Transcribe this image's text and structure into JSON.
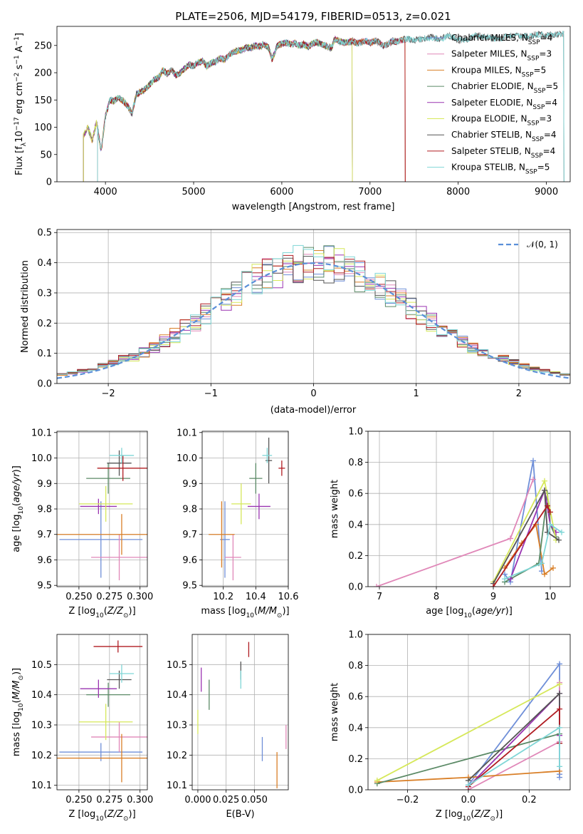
{
  "title": "PLATE=2506, MJD=54179, FIBERID=0513, z=0.021",
  "colors": {
    "Chabrier MILES": "#6f8fd8",
    "Salpeter MILES": "#e087b8",
    "Kroupa MILES": "#d97f27",
    "Chabrier ELODIE": "#5b8a66",
    "Salpeter ELODIE": "#9a34b1",
    "Kroupa ELODIE": "#d6e85a",
    "Chabrier STELIB": "#555555",
    "Salpeter STELIB": "#b01c22",
    "Kroupa STELIB": "#7fd6d6"
  },
  "chart_data": [
    {
      "type": "line",
      "name": "spectrum",
      "ylabel": "Flux [f_λ 10^-17 erg cm^-2 s^-1 A^-1]",
      "xlabel": "wavelength [Angstrom, rest frame]",
      "xlim": [
        3450,
        9270
      ],
      "ylim": [
        0,
        285
      ],
      "xticks": [
        4000,
        5000,
        6000,
        7000,
        8000,
        9000
      ],
      "yticks": [
        0,
        50,
        100,
        150,
        200,
        250
      ],
      "legend": [
        {
          "label": "Chabrier MILES, N_SSP=4",
          "text": "Chabrier MILES, N",
          "sub": "SSP",
          "n": "=4"
        },
        {
          "label": "Salpeter MILES, N_SSP=3",
          "text": "Salpeter MILES, N",
          "sub": "SSP",
          "n": "=3"
        },
        {
          "label": "Kroupa MILES, N_SSP=5",
          "text": "Kroupa MILES, N",
          "sub": "SSP",
          "n": "=5"
        },
        {
          "label": "Chabrier ELODIE, N_SSP=5",
          "text": "Chabrier ELODIE, N",
          "sub": "SSP",
          "n": "=5"
        },
        {
          "label": "Salpeter ELODIE, N_SSP=4",
          "text": "Salpeter ELODIE, N",
          "sub": "SSP",
          "n": "=4"
        },
        {
          "label": "Kroupa ELODIE, N_SSP=3",
          "text": "Kroupa ELODIE, N",
          "sub": "SSP",
          "n": "=3"
        },
        {
          "label": "Chabrier STELIB, N_SSP=4",
          "text": "Chabrier STELIB, N",
          "sub": "SSP",
          "n": "=4"
        },
        {
          "label": "Salpeter STELIB, N_SSP=4",
          "text": "Salpeter STELIB, N",
          "sub": "SSP",
          "n": "=4"
        },
        {
          "label": "Kroupa STELIB, N_SSP=5",
          "text": "Kroupa STELIB, N",
          "sub": "SSP",
          "n": "=5"
        }
      ],
      "observed_x": [
        3750,
        3800,
        3850,
        3900,
        3950,
        4000,
        4050,
        4100,
        4150,
        4200,
        4250,
        4300,
        4350,
        4400,
        4450,
        4500,
        4550,
        4600,
        4650,
        4700,
        4750,
        4800,
        4850,
        4900,
        4950,
        5000,
        5050,
        5100,
        5150,
        5200,
        5250,
        5300,
        5350,
        5400,
        5450,
        5500,
        5550,
        5600,
        5650,
        5700,
        5750,
        5800,
        5850,
        5890,
        5950,
        6000,
        6050,
        6100,
        6150,
        6200,
        6250,
        6300,
        6350,
        6400,
        6450,
        6500,
        6563,
        6600,
        6650,
        6700,
        6750,
        6800,
        6850,
        6900,
        6950,
        7000,
        7050,
        7100,
        7150,
        7200,
        7250,
        7300,
        7350,
        7400,
        7500,
        7600,
        7700,
        7800,
        7900,
        8000,
        8100,
        8200,
        8300,
        8400,
        8500,
        8600,
        8700,
        8800,
        8900,
        9000,
        9100,
        9200
      ],
      "observed_y": [
        85,
        100,
        75,
        110,
        55,
        120,
        150,
        148,
        155,
        148,
        140,
        125,
        160,
        165,
        170,
        178,
        188,
        190,
        205,
        198,
        205,
        195,
        200,
        208,
        215,
        212,
        218,
        222,
        212,
        218,
        220,
        226,
        224,
        232,
        238,
        240,
        242,
        246,
        245,
        250,
        248,
        252,
        246,
        225,
        250,
        253,
        255,
        252,
        254,
        250,
        252,
        248,
        254,
        256,
        252,
        250,
        245,
        262,
        258,
        255,
        256,
        258,
        254,
        256,
        258,
        255,
        258,
        256,
        250,
        252,
        258,
        257,
        259,
        262,
        260,
        262,
        265,
        262,
        268,
        260,
        262,
        268,
        265,
        263,
        264,
        268,
        266,
        267,
        270,
        268,
        270,
        272
      ],
      "model_ranges": {
        "Chabrier MILES": [
          3750,
          7400
        ],
        "Salpeter MILES": [
          3750,
          7400
        ],
        "Kroupa MILES": [
          3750,
          7400
        ],
        "Chabrier ELODIE": [
          3750,
          6800
        ],
        "Salpeter ELODIE": [
          3750,
          6800
        ],
        "Kroupa ELODIE": [
          3750,
          6800
        ],
        "Chabrier STELIB": [
          3910,
          9200
        ],
        "Salpeter STELIB": [
          3910,
          7400
        ],
        "Kroupa STELIB": [
          3910,
          9200
        ]
      }
    },
    {
      "type": "step",
      "name": "residual-distribution",
      "xlabel": "(data-model)/error",
      "ylabel": "Normed distribution",
      "xlim": [
        -2.5,
        2.5
      ],
      "ylim": [
        0,
        0.51
      ],
      "xticks": [
        -2,
        -1,
        0,
        1,
        2
      ],
      "yticks": [
        0.0,
        0.1,
        0.2,
        0.3,
        0.4,
        0.5
      ],
      "reference_curve": {
        "label": "N(0,1)"
      }
    },
    {
      "type": "errorbar",
      "name": "age-vs-Z",
      "xlabel": "Z [log10(Z/Z⊙)]",
      "ylabel": "age [log10(age/yr)]",
      "xlim": [
        0.232,
        0.306
      ],
      "ylim": [
        9.495,
        10.105
      ],
      "xticks": [
        0.25,
        0.275,
        0.3
      ],
      "yticks": [
        9.5,
        9.6,
        9.7,
        9.8,
        9.9,
        10.0,
        10.1
      ],
      "points": [
        {
          "model": "Chabrier MILES",
          "x": 0.268,
          "xerr": 0.034,
          "y": 9.68,
          "yerr": 0.15
        },
        {
          "model": "Salpeter MILES",
          "x": 0.283,
          "xerr": 0.023,
          "y": 9.61,
          "yerr": 0.09
        },
        {
          "model": "Kroupa MILES",
          "x": 0.285,
          "xerr": 0.055,
          "y": 9.7,
          "yerr": 0.08
        },
        {
          "model": "Chabrier ELODIE",
          "x": 0.274,
          "xerr": 0.018,
          "y": 9.92,
          "yerr": 0.06
        },
        {
          "model": "Salpeter ELODIE",
          "x": 0.266,
          "xerr": 0.015,
          "y": 9.81,
          "yerr": 0.03
        },
        {
          "model": "Kroupa ELODIE",
          "x": 0.272,
          "xerr": 0.022,
          "y": 9.82,
          "yerr": 0.07
        },
        {
          "model": "Chabrier STELIB",
          "x": 0.283,
          "xerr": 0.01,
          "y": 9.98,
          "yerr": 0.05
        },
        {
          "model": "Salpeter STELIB",
          "x": 0.286,
          "xerr": 0.021,
          "y": 9.96,
          "yerr": 0.05
        },
        {
          "model": "Kroupa STELIB",
          "x": 0.285,
          "xerr": 0.01,
          "y": 10.01,
          "yerr": 0.03
        }
      ]
    },
    {
      "type": "errorbar",
      "name": "age-vs-mass",
      "xlabel": "mass [log10(M/M⊙)]",
      "ylabel": "",
      "xlim": [
        10.07,
        10.6
      ],
      "ylim": [
        9.495,
        10.105
      ],
      "xticks": [
        10.2,
        10.4,
        10.6
      ],
      "yticks": [
        9.5,
        9.6,
        9.7,
        9.8,
        9.9,
        10.0,
        10.1
      ],
      "points": [
        {
          "model": "Chabrier MILES",
          "x": 10.21,
          "xerr": 0.03,
          "y": 9.68,
          "yerr": 0.15
        },
        {
          "model": "Salpeter MILES",
          "x": 10.26,
          "xerr": 0.05,
          "y": 9.61,
          "yerr": 0.09
        },
        {
          "model": "Kroupa MILES",
          "x": 10.19,
          "xerr": 0.08,
          "y": 9.7,
          "yerr": 0.13
        },
        {
          "model": "Chabrier ELODIE",
          "x": 10.4,
          "xerr": 0.04,
          "y": 9.92,
          "yerr": 0.06
        },
        {
          "model": "Salpeter ELODIE",
          "x": 10.42,
          "xerr": 0.07,
          "y": 9.81,
          "yerr": 0.05
        },
        {
          "model": "Kroupa ELODIE",
          "x": 10.31,
          "xerr": 0.06,
          "y": 9.82,
          "yerr": 0.08
        },
        {
          "model": "Chabrier STELIB",
          "x": 10.48,
          "xerr": 0.02,
          "y": 9.99,
          "yerr": 0.09
        },
        {
          "model": "Salpeter STELIB",
          "x": 10.56,
          "xerr": 0.02,
          "y": 9.96,
          "yerr": 0.03
        },
        {
          "model": "Kroupa STELIB",
          "x": 10.47,
          "xerr": 0.03,
          "y": 10.01,
          "yerr": 0.03
        }
      ]
    },
    {
      "type": "line",
      "name": "mass-weight-vs-age",
      "xlabel": "age [log10(age/yr)]",
      "ylabel": "mass weight",
      "xlim": [
        6.8,
        10.35
      ],
      "ylim": [
        0,
        1.0
      ],
      "xticks": [
        7,
        8,
        9,
        10
      ],
      "yticks": [
        0.0,
        0.2,
        0.4,
        0.6,
        0.8,
        1.0
      ],
      "series": [
        {
          "model": "Chabrier MILES",
          "x": [
            9.2,
            9.3,
            9.7,
            9.85
          ],
          "y": [
            0.08,
            0.03,
            0.81,
            0.1
          ]
        },
        {
          "model": "Salpeter MILES",
          "x": [
            6.95,
            9.3,
            9.7
          ],
          "y": [
            0.0,
            0.31,
            0.69
          ]
        },
        {
          "model": "Kroupa MILES",
          "x": [
            9.2,
            9.5,
            9.75,
            9.9,
            10.05
          ],
          "y": [
            0.12,
            0.28,
            0.4,
            0.08,
            0.12
          ]
        },
        {
          "model": "Chabrier ELODIE",
          "x": [
            9.2,
            9.8,
            9.95,
            10.0,
            10.1
          ],
          "y": [
            0.03,
            0.15,
            0.6,
            0.4,
            0.32
          ]
        },
        {
          "model": "Salpeter ELODIE",
          "x": [
            9.3,
            9.9,
            10.0,
            10.1
          ],
          "y": [
            0.05,
            0.62,
            0.4,
            0.35
          ]
        },
        {
          "model": "Kroupa ELODIE",
          "x": [
            9.0,
            9.9,
            10.1
          ],
          "y": [
            0.03,
            0.68,
            0.3
          ]
        },
        {
          "model": "Chabrier STELIB",
          "x": [
            9.0,
            9.9,
            9.95,
            10.15
          ],
          "y": [
            0.02,
            0.62,
            0.35,
            0.3
          ]
        },
        {
          "model": "Salpeter STELIB",
          "x": [
            9.0,
            9.95,
            10.0
          ],
          "y": [
            0.0,
            0.52,
            0.48
          ]
        },
        {
          "model": "Kroupa STELIB",
          "x": [
            9.2,
            9.85,
            10.0,
            10.2
          ],
          "y": [
            0.05,
            0.15,
            0.4,
            0.35
          ]
        }
      ]
    },
    {
      "type": "errorbar",
      "name": "mass-vs-Z",
      "xlabel": "Z [log10(Z/Z⊙)]",
      "ylabel": "mass [log10(M/M⊙)]",
      "xlim": [
        0.232,
        0.306
      ],
      "ylim": [
        10.085,
        10.6
      ],
      "xticks": [
        0.25,
        0.275,
        0.3
      ],
      "yticks": [
        10.1,
        10.2,
        10.3,
        10.4,
        10.5
      ],
      "points": [
        {
          "model": "Chabrier MILES",
          "x": 0.268,
          "xerr": 0.034,
          "y": 10.21,
          "yerr": 0.03
        },
        {
          "model": "Salpeter MILES",
          "x": 0.283,
          "xerr": 0.023,
          "y": 10.26,
          "yerr": 0.05
        },
        {
          "model": "Kroupa MILES",
          "x": 0.285,
          "xerr": 0.055,
          "y": 10.19,
          "yerr": 0.08
        },
        {
          "model": "Chabrier ELODIE",
          "x": 0.274,
          "xerr": 0.018,
          "y": 10.4,
          "yerr": 0.04
        },
        {
          "model": "Salpeter ELODIE",
          "x": 0.266,
          "xerr": 0.015,
          "y": 10.42,
          "yerr": 0.03
        },
        {
          "model": "Kroupa ELODIE",
          "x": 0.272,
          "xerr": 0.022,
          "y": 10.31,
          "yerr": 0.06
        },
        {
          "model": "Chabrier STELIB",
          "x": 0.283,
          "xerr": 0.01,
          "y": 10.45,
          "yerr": 0.03
        },
        {
          "model": "Salpeter STELIB",
          "x": 0.282,
          "xerr": 0.02,
          "y": 10.56,
          "yerr": 0.02
        },
        {
          "model": "Kroupa STELIB",
          "x": 0.285,
          "xerr": 0.01,
          "y": 10.47,
          "yerr": 0.03
        }
      ]
    },
    {
      "type": "errorbar",
      "name": "mass-vs-ebv",
      "xlabel": "E(B-V)",
      "ylabel": "",
      "xlim": [
        -0.005,
        0.08
      ],
      "ylim": [
        10.085,
        10.6
      ],
      "xticks": [
        0.0,
        0.025,
        0.05
      ],
      "yticks": [
        10.1,
        10.2,
        10.3,
        10.4,
        10.5
      ],
      "points": [
        {
          "model": "Chabrier MILES",
          "x": 0.057,
          "y": 10.22,
          "yerr": 0.04
        },
        {
          "model": "Salpeter MILES",
          "x": 0.078,
          "y": 10.26,
          "yerr": 0.04
        },
        {
          "model": "Kroupa MILES",
          "x": 0.07,
          "y": 10.15,
          "yerr": 0.06
        },
        {
          "model": "Chabrier ELODIE",
          "x": 0.01,
          "y": 10.4,
          "yerr": 0.05
        },
        {
          "model": "Salpeter ELODIE",
          "x": 0.003,
          "y": 10.45,
          "yerr": 0.04
        },
        {
          "model": "Kroupa ELODIE",
          "x": 0.0,
          "y": 10.31,
          "yerr": 0.04
        },
        {
          "model": "Chabrier STELIB",
          "x": 0.038,
          "y": 10.48,
          "yerr": 0.03
        },
        {
          "model": "Salpeter STELIB",
          "x": 0.045,
          "y": 10.55,
          "yerr": 0.025
        },
        {
          "model": "Kroupa STELIB",
          "x": 0.038,
          "y": 10.45,
          "yerr": 0.03
        }
      ]
    },
    {
      "type": "line",
      "name": "mass-weight-vs-Z",
      "xlabel": "Z [log10(Z/Z⊙)]",
      "ylabel": "mass weight",
      "xlim": [
        -0.33,
        0.335
      ],
      "ylim": [
        0,
        1.0
      ],
      "xticks": [
        -0.2,
        0.0,
        0.2
      ],
      "yticks": [
        0.0,
        0.2,
        0.4,
        0.6,
        0.8,
        1.0
      ],
      "series": [
        {
          "model": "Chabrier MILES",
          "x": [
            0.0,
            0.3,
            0.3,
            0.3
          ],
          "y": [
            0.03,
            0.81,
            0.1,
            0.08
          ]
        },
        {
          "model": "Salpeter MILES",
          "x": [
            0.0,
            0.3,
            0.3
          ],
          "y": [
            0.0,
            0.31,
            0.69
          ]
        },
        {
          "model": "Kroupa MILES",
          "x": [
            -0.3,
            0.0,
            0.3
          ],
          "y": [
            0.05,
            0.08,
            0.12
          ]
        },
        {
          "model": "Chabrier ELODIE",
          "x": [
            -0.3,
            0.3,
            0.3
          ],
          "y": [
            0.04,
            0.36,
            0.3
          ]
        },
        {
          "model": "Salpeter ELODIE",
          "x": [
            0.0,
            0.3,
            0.3
          ],
          "y": [
            0.02,
            0.62,
            0.35
          ]
        },
        {
          "model": "Kroupa ELODIE",
          "x": [
            -0.3,
            0.3
          ],
          "y": [
            0.06,
            0.68
          ]
        },
        {
          "model": "Chabrier STELIB",
          "x": [
            0.0,
            0.3,
            0.3
          ],
          "y": [
            0.06,
            0.62,
            0.3
          ]
        },
        {
          "model": "Salpeter STELIB",
          "x": [
            0.0,
            0.3,
            0.3
          ],
          "y": [
            0.02,
            0.52,
            0.3
          ]
        },
        {
          "model": "Kroupa STELIB",
          "x": [
            0.0,
            0.3,
            0.3
          ],
          "y": [
            0.03,
            0.4,
            0.15
          ]
        }
      ]
    }
  ]
}
